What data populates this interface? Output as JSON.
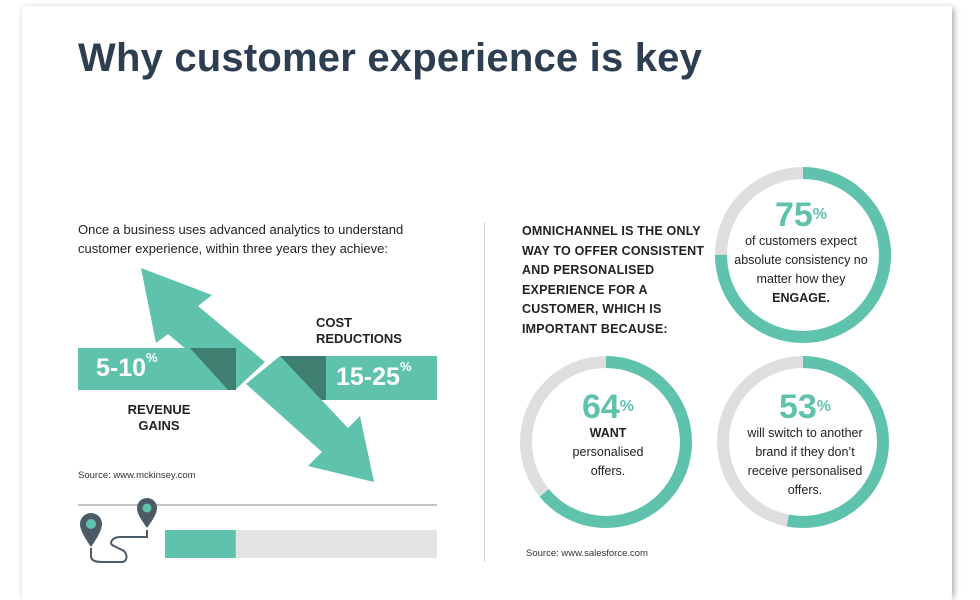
{
  "title": "Why customer experience is key",
  "intro": "Once a business uses advanced analytics to understand customer experience, within three years they achieve:",
  "revenue": {
    "value": "5-10",
    "unit": "%",
    "label_line1": "REVENUE",
    "label_line2": "GAINS"
  },
  "cost": {
    "value": "15-25",
    "unit": "%",
    "label_line1": "COST",
    "label_line2": "REDUCTIONS"
  },
  "source_left": "Source: www.mckinsey.com",
  "omnichannel": "OMNICHANNEL IS THE ONLY WAY TO OFFER CONSISTENT AND PERSONALISED EXPERIENCE FOR A CUSTOMER, WHICH IS IMPORTANT BECAUSE:",
  "stats": [
    {
      "value": "75",
      "unit": "%",
      "text": "of customers expect absolute consistency no matter how they",
      "strong": "ENGAGE.",
      "fraction": 0.75
    },
    {
      "value": "64",
      "unit": "%",
      "strong": "WANT",
      "text": "personalised offers.",
      "fraction": 0.64
    },
    {
      "value": "53",
      "unit": "%",
      "text": "will switch to another brand if they don’t receive personalised offers.",
      "fraction": 0.53
    }
  ],
  "source_right": "Source: www.salesforce.com",
  "progress": {
    "fraction": 0.26
  },
  "colors": {
    "teal": "#5fc2ad",
    "dark_teal": "#3f7f6f",
    "title": "#2c3e50",
    "ring_bg": "#dedede",
    "bar_bg": "#e3e3e3"
  },
  "icons": [
    "map-pin-icon",
    "map-pin-icon",
    "route-icon"
  ]
}
